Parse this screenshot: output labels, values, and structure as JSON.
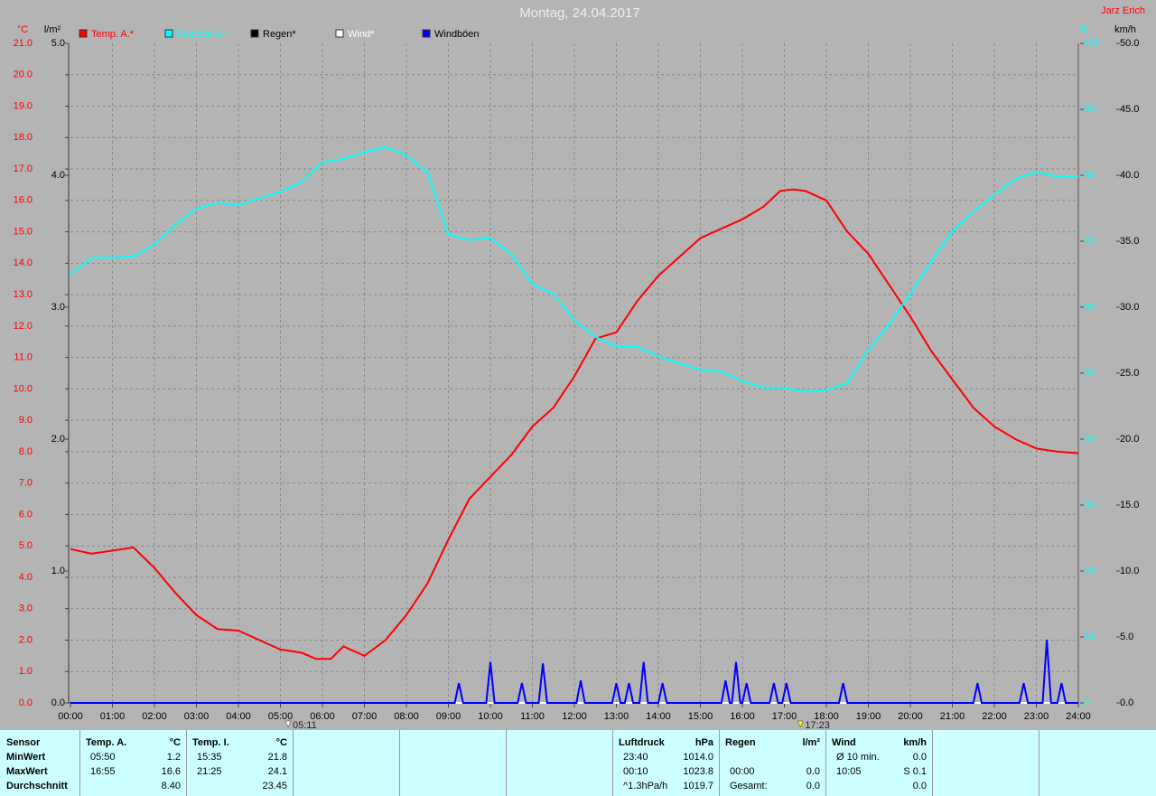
{
  "chart_data": {
    "type": "line",
    "title": "Montag, 24.04.2017",
    "author": "Jarz Erich",
    "xlim": [
      0,
      24
    ],
    "xticks": [
      {
        "value": 0,
        "label": "00:00"
      },
      {
        "value": 1,
        "label": "01:00"
      },
      {
        "value": 2,
        "label": "02:00"
      },
      {
        "value": 3,
        "label": "03:00"
      },
      {
        "value": 4,
        "label": "04:00"
      },
      {
        "value": 5,
        "label": "05:00"
      },
      {
        "value": 6,
        "label": "06:00"
      },
      {
        "value": 7,
        "label": "07:00"
      },
      {
        "value": 8,
        "label": "08:00"
      },
      {
        "value": 9,
        "label": "09:00"
      },
      {
        "value": 10,
        "label": "10:00"
      },
      {
        "value": 11,
        "label": "11:00"
      },
      {
        "value": 12,
        "label": "12:00"
      },
      {
        "value": 13,
        "label": "13:00"
      },
      {
        "value": 14,
        "label": "14:00"
      },
      {
        "value": 15,
        "label": "15:00"
      },
      {
        "value": 16,
        "label": "16:00"
      },
      {
        "value": 17,
        "label": "17:00"
      },
      {
        "value": 18,
        "label": "18:00"
      },
      {
        "value": 19,
        "label": "19:00"
      },
      {
        "value": 20,
        "label": "20:00"
      },
      {
        "value": 21,
        "label": "21:00"
      },
      {
        "value": 22,
        "label": "22:00"
      },
      {
        "value": 23,
        "label": "23:00"
      },
      {
        "value": 24,
        "label": "24:00"
      }
    ],
    "grid": true,
    "axes": [
      {
        "label": "°C",
        "color": "#ff0000",
        "lim": [
          0,
          21
        ],
        "ticks": [
          {
            "value": 0,
            "label": "0.0"
          },
          {
            "value": 1,
            "label": "1.0"
          },
          {
            "value": 2,
            "label": "2.0"
          },
          {
            "value": 3,
            "label": "3.0"
          },
          {
            "value": 4,
            "label": "4.0"
          },
          {
            "value": 5,
            "label": "5.0"
          },
          {
            "value": 6,
            "label": "6.0"
          },
          {
            "value": 7,
            "label": "7.0"
          },
          {
            "value": 8,
            "label": "8.0"
          },
          {
            "value": 9,
            "label": "9.0"
          },
          {
            "value": 10,
            "label": "10.0"
          },
          {
            "value": 11,
            "label": "11.0"
          },
          {
            "value": 12,
            "label": "12.0"
          },
          {
            "value": 13,
            "label": "13.0"
          },
          {
            "value": 14,
            "label": "14.0"
          },
          {
            "value": 15,
            "label": "15.0"
          },
          {
            "value": 16,
            "label": "16.0"
          },
          {
            "value": 17,
            "label": "17.0"
          },
          {
            "value": 18,
            "label": "18.0"
          },
          {
            "value": 19,
            "label": "19.0"
          },
          {
            "value": 20,
            "label": "20.0"
          },
          {
            "value": 21,
            "label": "21.0"
          }
        ]
      },
      {
        "label": "l/m²",
        "color": "#000000",
        "lim": [
          0,
          5
        ],
        "ticks": [
          {
            "value": 0,
            "label": "0.0"
          },
          {
            "value": 1,
            "label": "1.0"
          },
          {
            "value": 2,
            "label": "2.0"
          },
          {
            "value": 3,
            "label": "3.0"
          },
          {
            "value": 4,
            "label": "4.0"
          },
          {
            "value": 5,
            "label": "5.0"
          }
        ]
      },
      {
        "label": "%",
        "color": "#00ffff",
        "lim": [
          0,
          100
        ],
        "ticks": [
          0,
          10,
          20,
          30,
          40,
          50,
          60,
          70,
          80,
          90,
          100
        ]
      },
      {
        "label": "km/h",
        "color": "#000000",
        "lim": [
          0,
          50
        ],
        "ticks": [
          {
            "value": 0,
            "label": "0.0"
          },
          {
            "value": 5,
            "label": "5.0"
          },
          {
            "value": 10,
            "label": "10.0"
          },
          {
            "value": 15,
            "label": "15.0"
          },
          {
            "value": 20,
            "label": "20.0"
          },
          {
            "value": 25,
            "label": "25.0"
          },
          {
            "value": 30,
            "label": "30.0"
          },
          {
            "value": 35,
            "label": "35.0"
          },
          {
            "value": 40,
            "label": "40.0"
          },
          {
            "value": 45,
            "label": "45.0"
          },
          {
            "value": 50,
            "label": "50.0"
          }
        ]
      }
    ],
    "series": [
      {
        "name": "Temp. A.*",
        "color": "#ff0000",
        "axis": 0,
        "x": [
          0,
          0.5,
          1,
          1.5,
          2,
          2.5,
          3,
          3.5,
          4,
          4.5,
          5,
          5.5,
          5.85,
          6.2,
          6.5,
          7,
          7.5,
          8,
          8.5,
          9,
          9.5,
          10,
          10.5,
          11,
          11.5,
          12,
          12.5,
          13,
          13.5,
          14,
          14.5,
          15,
          15.5,
          16,
          16.5,
          16.9,
          17.2,
          17.5,
          18,
          18.5,
          19,
          19.5,
          20,
          20.5,
          21,
          21.5,
          22,
          22.5,
          23,
          23.5,
          24
        ],
        "values": [
          4.9,
          4.75,
          4.85,
          4.95,
          4.3,
          3.5,
          2.8,
          2.35,
          2.3,
          2.0,
          1.7,
          1.6,
          1.4,
          1.4,
          1.8,
          1.5,
          2.0,
          2.8,
          3.8,
          5.2,
          6.5,
          7.2,
          7.9,
          8.8,
          9.4,
          10.4,
          11.6,
          11.8,
          12.8,
          13.6,
          14.2,
          14.8,
          15.1,
          15.4,
          15.8,
          16.3,
          16.35,
          16.3,
          16.0,
          15.0,
          14.3,
          13.3,
          12.3,
          11.2,
          10.3,
          9.4,
          8.8,
          8.4,
          8.1,
          8.0,
          7.95
        ]
      },
      {
        "name": "Feuchte A.*",
        "color": "#00ffff",
        "axis": 2,
        "x": [
          0,
          0.5,
          1,
          1.5,
          2,
          2.5,
          3,
          3.5,
          4,
          4.5,
          5,
          5.5,
          6,
          6.5,
          7,
          7.5,
          8,
          8.5,
          9,
          9.5,
          10,
          10.5,
          11,
          11.5,
          12,
          12.5,
          13,
          13.5,
          14,
          14.5,
          15,
          15.5,
          16,
          16.5,
          17,
          17.5,
          18,
          18.5,
          19,
          19.5,
          20,
          20.5,
          21,
          21.5,
          22,
          22.5,
          23,
          23.5,
          24
        ],
        "values": [
          65,
          67.5,
          67.5,
          67.7,
          69.5,
          72.5,
          75,
          75.8,
          75.5,
          76.5,
          77.5,
          79,
          82,
          82.5,
          83.5,
          84.3,
          83,
          80.5,
          71,
          70.2,
          70.5,
          68,
          63.5,
          62,
          58,
          55.5,
          54,
          54,
          52.5,
          51.5,
          50.5,
          50.2,
          48.8,
          47.8,
          47.8,
          47.2,
          47.4,
          48.5,
          53.5,
          57.5,
          62,
          67,
          71.5,
          74.5,
          77,
          79.5,
          80.5,
          79.8,
          79.8
        ]
      },
      {
        "name": "Regen*",
        "color": "#000000",
        "axis": 1,
        "x": [
          0,
          24
        ],
        "values": [
          0,
          0
        ]
      },
      {
        "name": "Wind*",
        "color": "#ffffff",
        "axis": 3,
        "x": [
          0,
          24
        ],
        "values": [
          0,
          0
        ]
      },
      {
        "name": "Windböen",
        "color": "#0000ff",
        "axis": 3,
        "x": [
          0,
          9.15,
          9.25,
          9.35,
          9.9,
          10.0,
          10.1,
          10.65,
          10.75,
          10.85,
          11.15,
          11.25,
          11.35,
          12.05,
          12.15,
          12.25,
          12.9,
          13.0,
          13.1,
          13.2,
          13.3,
          13.4,
          13.55,
          13.65,
          13.75,
          14.0,
          14.1,
          14.2,
          15.5,
          15.6,
          15.7,
          15.75,
          15.85,
          15.95,
          16.0,
          16.1,
          16.2,
          16.65,
          16.75,
          16.85,
          16.95,
          17.05,
          17.15,
          18.3,
          18.4,
          18.5,
          21.5,
          21.6,
          21.7,
          22.6,
          22.7,
          22.8,
          23.15,
          23.25,
          23.35,
          23.5,
          23.6,
          23.7,
          24
        ],
        "values": [
          0,
          0,
          1.5,
          0,
          0,
          3.1,
          0,
          0,
          1.5,
          0,
          0,
          3.0,
          0,
          0,
          1.7,
          0,
          0,
          1.5,
          0,
          0,
          1.5,
          0,
          0,
          3.1,
          0,
          0,
          1.5,
          0,
          0,
          1.7,
          0,
          0,
          3.1,
          0,
          0,
          1.5,
          0,
          0,
          1.5,
          0,
          0,
          1.5,
          0,
          0,
          1.5,
          0,
          0,
          1.5,
          0,
          0,
          1.5,
          0,
          0,
          4.8,
          0,
          0,
          1.5,
          0,
          0
        ]
      }
    ],
    "markers": [
      {
        "x": 5.1833,
        "label": "05:11",
        "color": "#ffffff"
      },
      {
        "x": 17.3833,
        "label": "17:23",
        "color": "#ffff00"
      }
    ]
  },
  "table": {
    "row_labels": [
      "Sensor",
      "MinWert",
      "MaxWert",
      "Durchschnitt"
    ],
    "groups": [
      {
        "name": "Temp. A.",
        "unit": "°C",
        "rows": [
          {
            "time": "05:50",
            "value": "1.2"
          },
          {
            "time": "16:55",
            "value": "16.6"
          },
          {
            "value": "8.40"
          }
        ]
      },
      {
        "name": "Temp. I.",
        "unit": "°C",
        "rows": [
          {
            "time": "15:35",
            "value": "21.8"
          },
          {
            "time": "21:25",
            "value": "24.1"
          },
          {
            "value": "23.45"
          }
        ]
      },
      {
        "name": "Luftdruck",
        "unit": "hPa",
        "rows": [
          {
            "time": "23:40",
            "value": "1014.0"
          },
          {
            "time": "00:10",
            "value": "1023.8"
          },
          {
            "time": "^1.3hPa/h",
            "value": "1019.7"
          }
        ]
      },
      {
        "name": "Regen",
        "unit": "l/m²",
        "rows": [
          {},
          {
            "time": "00:00",
            "value": "0.0"
          },
          {
            "time": "Gesamt:",
            "value": "0.0"
          }
        ]
      },
      {
        "name": "Wind",
        "unit": "km/h",
        "rows": [
          {
            "time": "Ø 10 min.",
            "value": "0.0"
          },
          {
            "time": "10:05",
            "value": "S 0.1"
          },
          {
            "value": "0.0"
          }
        ]
      }
    ]
  }
}
